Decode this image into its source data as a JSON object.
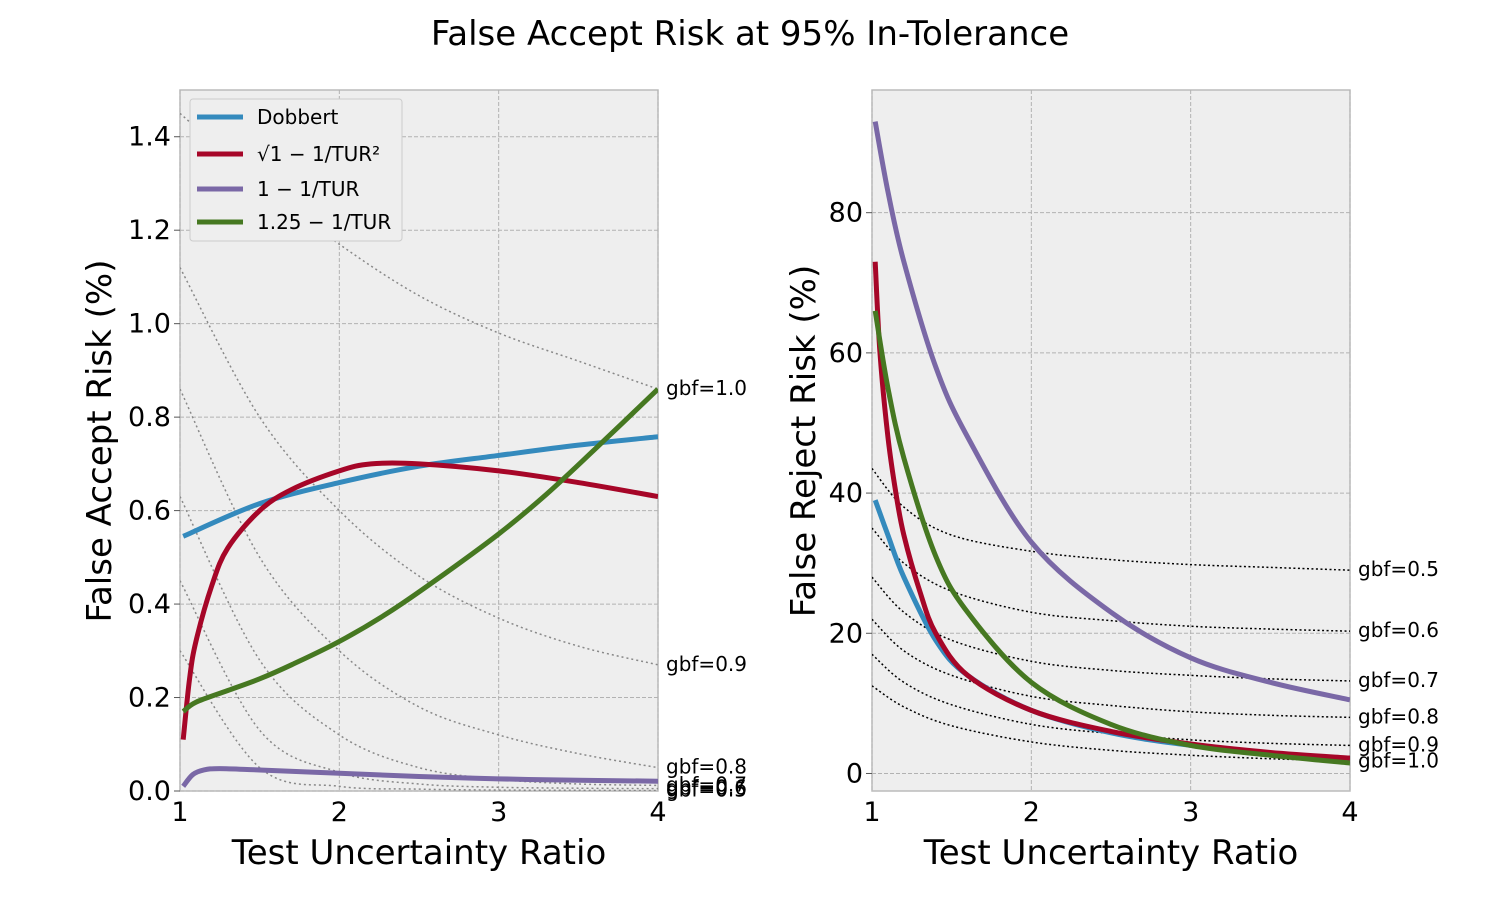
{
  "title": "False Accept Risk at 95% In-Tolerance",
  "chart_data": [
    {
      "type": "line",
      "xlabel": "Test Uncertainty Ratio",
      "ylabel": "False Accept Risk (%)",
      "xlim": [
        1,
        4
      ],
      "ylim": [
        0,
        1.5
      ],
      "xticks": [
        "1",
        "2",
        "3",
        "4"
      ],
      "yticks": [
        "0.0",
        "0.2",
        "0.4",
        "0.6",
        "0.8",
        "1.0",
        "1.2",
        "1.4"
      ],
      "grid": true,
      "legend_position": "top-left",
      "series": [
        {
          "name": "Dobbert",
          "color": "#348abd",
          "x": [
            1.02,
            1.5,
            2.0,
            2.5,
            3.0,
            3.5,
            4.0
          ],
          "y": [
            0.545,
            0.615,
            0.66,
            0.695,
            0.718,
            0.74,
            0.758
          ]
        },
        {
          "name": "√1 − 1/TUR²",
          "color": "#a60628",
          "x": [
            1.02,
            1.06,
            1.1,
            1.2,
            1.3,
            1.5,
            1.7,
            2.0,
            2.2,
            2.5,
            3.0,
            3.5,
            4.0
          ],
          "y": [
            0.11,
            0.24,
            0.32,
            0.44,
            0.52,
            0.6,
            0.645,
            0.685,
            0.7,
            0.7,
            0.685,
            0.66,
            0.63
          ]
        },
        {
          "name": "1 − 1/TUR",
          "color": "#7a68a6",
          "x": [
            1.02,
            1.08,
            1.15,
            1.25,
            1.5,
            2.0,
            2.5,
            3.0,
            3.5,
            4.0
          ],
          "y": [
            0.01,
            0.035,
            0.045,
            0.048,
            0.045,
            0.038,
            0.031,
            0.026,
            0.023,
            0.021
          ]
        },
        {
          "name": "1.25 − 1/TUR",
          "color": "#467821",
          "x": [
            1.02,
            1.1,
            1.3,
            1.5,
            1.7,
            2.0,
            2.3,
            2.6,
            3.0,
            3.3,
            3.6,
            4.0
          ],
          "y": [
            0.17,
            0.19,
            0.215,
            0.24,
            0.27,
            0.32,
            0.38,
            0.45,
            0.55,
            0.635,
            0.73,
            0.86
          ]
        }
      ],
      "gbf_curves": [
        {
          "label": "gbf=1.0",
          "x": [
            1.0,
            1.5,
            2.0,
            2.5,
            3.0,
            3.5,
            4.0
          ],
          "y": [
            1.45,
            1.3,
            1.17,
            1.06,
            0.98,
            0.92,
            0.86
          ]
        },
        {
          "label": "gbf=0.9",
          "x": [
            1.0,
            1.5,
            2.0,
            2.5,
            3.0,
            3.5,
            4.0
          ],
          "y": [
            1.12,
            0.8,
            0.6,
            0.46,
            0.37,
            0.31,
            0.27
          ]
        },
        {
          "label": "gbf=0.8",
          "x": [
            1.0,
            1.5,
            2.0,
            2.5,
            3.0,
            3.5,
            4.0
          ],
          "y": [
            0.86,
            0.5,
            0.3,
            0.18,
            0.12,
            0.08,
            0.05
          ]
        },
        {
          "label": "gbf=0.7",
          "x": [
            1.0,
            1.5,
            2.0,
            2.5,
            3.0,
            3.5,
            4.0
          ],
          "y": [
            0.63,
            0.28,
            0.12,
            0.05,
            0.025,
            0.015,
            0.012
          ]
        },
        {
          "label": "gbf=0.6",
          "x": [
            1.0,
            1.5,
            2.0,
            2.5,
            3.0,
            3.5,
            4.0
          ],
          "y": [
            0.45,
            0.13,
            0.04,
            0.015,
            0.008,
            0.006,
            0.005
          ]
        },
        {
          "label": "gbf=0.5",
          "x": [
            1.0,
            1.5,
            2.0,
            2.5,
            3.0,
            3.5,
            4.0
          ],
          "y": [
            0.3,
            0.05,
            0.01,
            0.004,
            0.002,
            0.0015,
            0.001
          ]
        }
      ]
    },
    {
      "type": "line",
      "xlabel": "Test Uncertainty Ratio",
      "ylabel": "False Reject Risk (%)",
      "xlim": [
        1,
        4
      ],
      "ylim": [
        -2.5,
        97.5
      ],
      "xticks": [
        "1",
        "2",
        "3",
        "4"
      ],
      "yticks": [
        "0",
        "20",
        "40",
        "60",
        "80"
      ],
      "grid": true,
      "series": [
        {
          "name": "Dobbert",
          "color": "#348abd",
          "x": [
            1.02,
            1.1,
            1.2,
            1.4,
            1.6,
            2.0,
            2.5,
            3.0,
            3.5,
            4.0
          ],
          "y": [
            39,
            34,
            28,
            19,
            14,
            9,
            5.8,
            4.0,
            2.8,
            2.0
          ]
        },
        {
          "name": "√1 − 1/TUR²",
          "color": "#a60628",
          "x": [
            1.02,
            1.05,
            1.1,
            1.15,
            1.2,
            1.3,
            1.4,
            1.6,
            2.0,
            2.5,
            3.0,
            3.5,
            4.0
          ],
          "y": [
            73,
            60,
            48,
            40,
            34,
            26,
            20,
            14,
            9,
            6,
            4.2,
            3.0,
            2.2
          ]
        },
        {
          "name": "1 − 1/TUR",
          "color": "#7a68a6",
          "x": [
            1.02,
            1.1,
            1.2,
            1.4,
            1.6,
            2.0,
            2.5,
            3.0,
            3.5,
            4.0
          ],
          "y": [
            93,
            83,
            73,
            58,
            48,
            33,
            23,
            16.5,
            13,
            10.5
          ]
        },
        {
          "name": "1.25 − 1/TUR",
          "color": "#467821",
          "x": [
            1.02,
            1.1,
            1.2,
            1.4,
            1.6,
            2.0,
            2.5,
            3.0,
            3.5,
            4.0
          ],
          "y": [
            66,
            55,
            45,
            31,
            23,
            13,
            7,
            4,
            2.6,
            1.5
          ]
        }
      ],
      "gbf_curves": [
        {
          "label": "gbf=0.5",
          "x": [
            1.0,
            1.2,
            1.5,
            2.0,
            2.5,
            3.0,
            3.5,
            4.0
          ],
          "y": [
            43.5,
            38,
            34,
            31.7,
            30.5,
            29.8,
            29.4,
            29.0
          ]
        },
        {
          "label": "gbf=0.6",
          "x": [
            1.0,
            1.2,
            1.5,
            2.0,
            2.5,
            3.0,
            3.5,
            4.0
          ],
          "y": [
            35,
            30,
            26,
            23,
            21.8,
            21.0,
            20.6,
            20.3
          ]
        },
        {
          "label": "gbf=0.7",
          "x": [
            1.0,
            1.2,
            1.5,
            2.0,
            2.5,
            3.0,
            3.5,
            4.0
          ],
          "y": [
            28,
            23,
            19,
            16,
            14.7,
            14.0,
            13.5,
            13.2
          ]
        },
        {
          "label": "gbf=0.8",
          "x": [
            1.0,
            1.2,
            1.5,
            2.0,
            2.5,
            3.0,
            3.5,
            4.0
          ],
          "y": [
            22,
            17.5,
            14,
            11.0,
            9.7,
            8.8,
            8.3,
            8.0
          ]
        },
        {
          "label": "gbf=0.9",
          "x": [
            1.0,
            1.2,
            1.5,
            2.0,
            2.5,
            3.0,
            3.5,
            4.0
          ],
          "y": [
            17,
            13,
            9.8,
            7.0,
            5.7,
            4.8,
            4.3,
            4.0
          ]
        },
        {
          "label": "gbf=1.0",
          "x": [
            1.0,
            1.2,
            1.5,
            2.0,
            2.5,
            3.0,
            3.5,
            4.0
          ],
          "y": [
            12.5,
            9.5,
            6.8,
            4.5,
            3.3,
            2.6,
            2.1,
            1.8
          ]
        }
      ]
    }
  ]
}
